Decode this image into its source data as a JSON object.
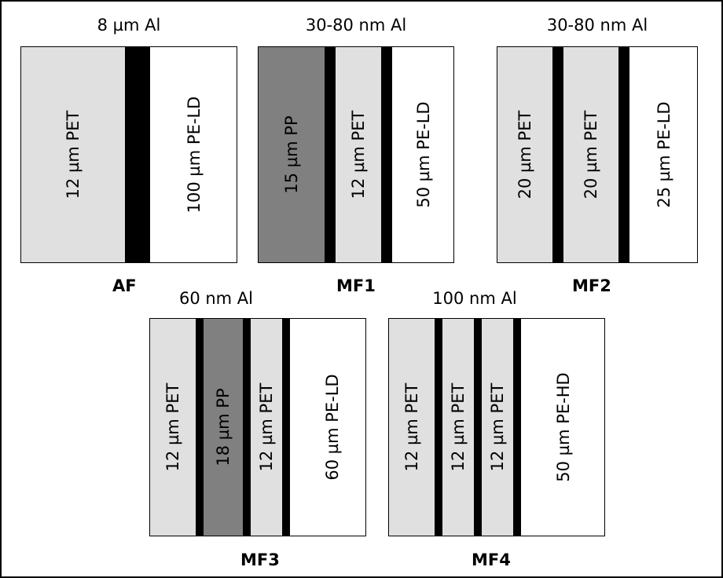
{
  "colors": {
    "pet": "#e0e0e0",
    "pp": "#808080",
    "al": "#000000",
    "pe": "#ffffff"
  },
  "films": {
    "af": {
      "name": "AF",
      "al_label": "8 µm Al",
      "layers": [
        {
          "kind": "pet",
          "label": "12 µm PET"
        },
        {
          "kind": "al",
          "label": ""
        },
        {
          "kind": "pe",
          "label": "100 µm PE-LD"
        }
      ]
    },
    "mf1": {
      "name": "MF1",
      "al_label": "30-80 nm Al",
      "layers": [
        {
          "kind": "pp",
          "label": "15 µm PP"
        },
        {
          "kind": "al",
          "label": ""
        },
        {
          "kind": "pet",
          "label": "12 µm PET"
        },
        {
          "kind": "al",
          "label": ""
        },
        {
          "kind": "pe",
          "label": "50 µm PE-LD"
        }
      ]
    },
    "mf2": {
      "name": "MF2",
      "al_label": "30-80 nm Al",
      "layers": [
        {
          "kind": "pet",
          "label": "20 µm PET"
        },
        {
          "kind": "al",
          "label": ""
        },
        {
          "kind": "pet",
          "label": "20 µm PET"
        },
        {
          "kind": "al",
          "label": ""
        },
        {
          "kind": "pe",
          "label": "25 µm PE-LD"
        }
      ]
    },
    "mf3": {
      "name": "MF3",
      "al_label": "60 nm Al",
      "layers": [
        {
          "kind": "pet",
          "label": "12 µm PET"
        },
        {
          "kind": "al",
          "label": ""
        },
        {
          "kind": "pp",
          "label": "18 µm PP"
        },
        {
          "kind": "al",
          "label": ""
        },
        {
          "kind": "pet",
          "label": "12 µm PET"
        },
        {
          "kind": "al",
          "label": ""
        },
        {
          "kind": "pe",
          "label": "60 µm PE-LD"
        }
      ]
    },
    "mf4": {
      "name": "MF4",
      "al_label": "100 nm Al",
      "layers": [
        {
          "kind": "pet",
          "label": "12 µm PET"
        },
        {
          "kind": "al",
          "label": ""
        },
        {
          "kind": "pet",
          "label": "12 µm PET"
        },
        {
          "kind": "al",
          "label": ""
        },
        {
          "kind": "pet",
          "label": "12 µm PET"
        },
        {
          "kind": "al",
          "label": ""
        },
        {
          "kind": "pe",
          "label": "50 µm PE-HD"
        }
      ]
    }
  }
}
